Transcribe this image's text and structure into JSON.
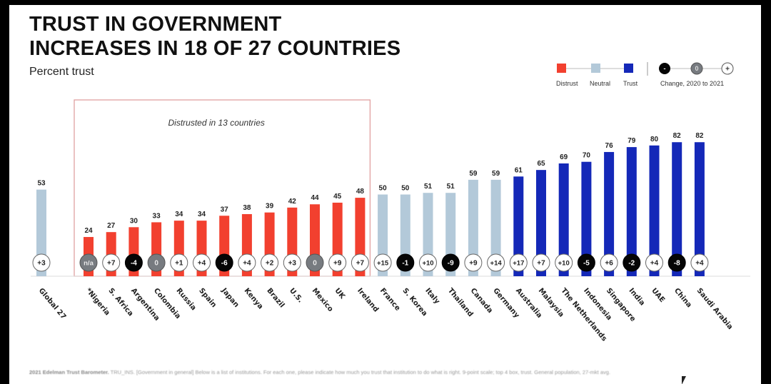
{
  "slide": {
    "title_line1": "TRUST IN GOVERNMENT",
    "title_line2": "INCREASES IN 18 OF 27 COUNTRIES",
    "subtitle": "Percent trust",
    "footnote_bold": "2021 Edelman Trust Barometer.",
    "footnote_text": " TRU_INS. [Government in general] Below is a list of institutions. For each one, please indicate how much you trust that institution to do what is right. 9-point scale; top 4 box, trust. General population, 27-mkt avg."
  },
  "legend": {
    "distrust": "Distrust",
    "neutral": "Neutral",
    "trust": "Trust",
    "change": "Change, 2020 to 2021",
    "neg_symbol": "-",
    "zero_symbol": "0",
    "pos_symbol": "+"
  },
  "colors": {
    "distrust": "#f2402f",
    "neutral": "#b3c9d9",
    "trust": "#1428b8",
    "change_negative": "#050505",
    "change_zero": "#777b80",
    "change_positive": "#ffffff",
    "box_border": "#e0a0a0"
  },
  "chart_data": {
    "type": "bar",
    "title": "TRUST IN GOVERNMENT INCREASES IN 18 OF 27 COUNTRIES",
    "subtitle": "Percent trust",
    "xlabel": "",
    "ylabel": "Percent trust",
    "ylim": [
      0,
      100
    ],
    "grid": false,
    "legend_position": "top-right",
    "annotation": "Distrusted in 13 countries",
    "categories": [
      "Global 27",
      "*Nigeria",
      "S. Africa",
      "Argentina",
      "Colombia",
      "Russia",
      "Spain",
      "Japan",
      "Kenya",
      "Brazil",
      "U.S.",
      "Mexico",
      "UK",
      "Ireland",
      "France",
      "S. Korea",
      "Italy",
      "Thailand",
      "Canada",
      "Germany",
      "Australia",
      "Malaysia",
      "The Netherlands",
      "Indonesia",
      "Singapore",
      "India",
      "UAE",
      "China",
      "Saudi Arabia"
    ],
    "values": [
      53,
      24,
      27,
      30,
      33,
      34,
      34,
      37,
      38,
      39,
      42,
      44,
      45,
      48,
      50,
      50,
      51,
      51,
      59,
      59,
      61,
      65,
      69,
      70,
      76,
      79,
      80,
      82,
      82
    ],
    "trust_level": [
      "neutral",
      "distrust",
      "distrust",
      "distrust",
      "distrust",
      "distrust",
      "distrust",
      "distrust",
      "distrust",
      "distrust",
      "distrust",
      "distrust",
      "distrust",
      "distrust",
      "neutral",
      "neutral",
      "neutral",
      "neutral",
      "neutral",
      "neutral",
      "trust",
      "trust",
      "trust",
      "trust",
      "trust",
      "trust",
      "trust",
      "trust",
      "trust"
    ],
    "change_2020_to_2021": [
      "+3",
      "n/a",
      "+7",
      "-4",
      "0",
      "+1",
      "+4",
      "-6",
      "+4",
      "+2",
      "+3",
      "0",
      "+9",
      "+7",
      "+15",
      "-1",
      "+10",
      "-9",
      "+9",
      "+14",
      "+17",
      "+7",
      "+10",
      "-5",
      "+6",
      "-2",
      "+4",
      "-8",
      "+4"
    ],
    "legend": [
      "Distrust",
      "Neutral",
      "Trust",
      "Change, 2020 to 2021"
    ]
  }
}
